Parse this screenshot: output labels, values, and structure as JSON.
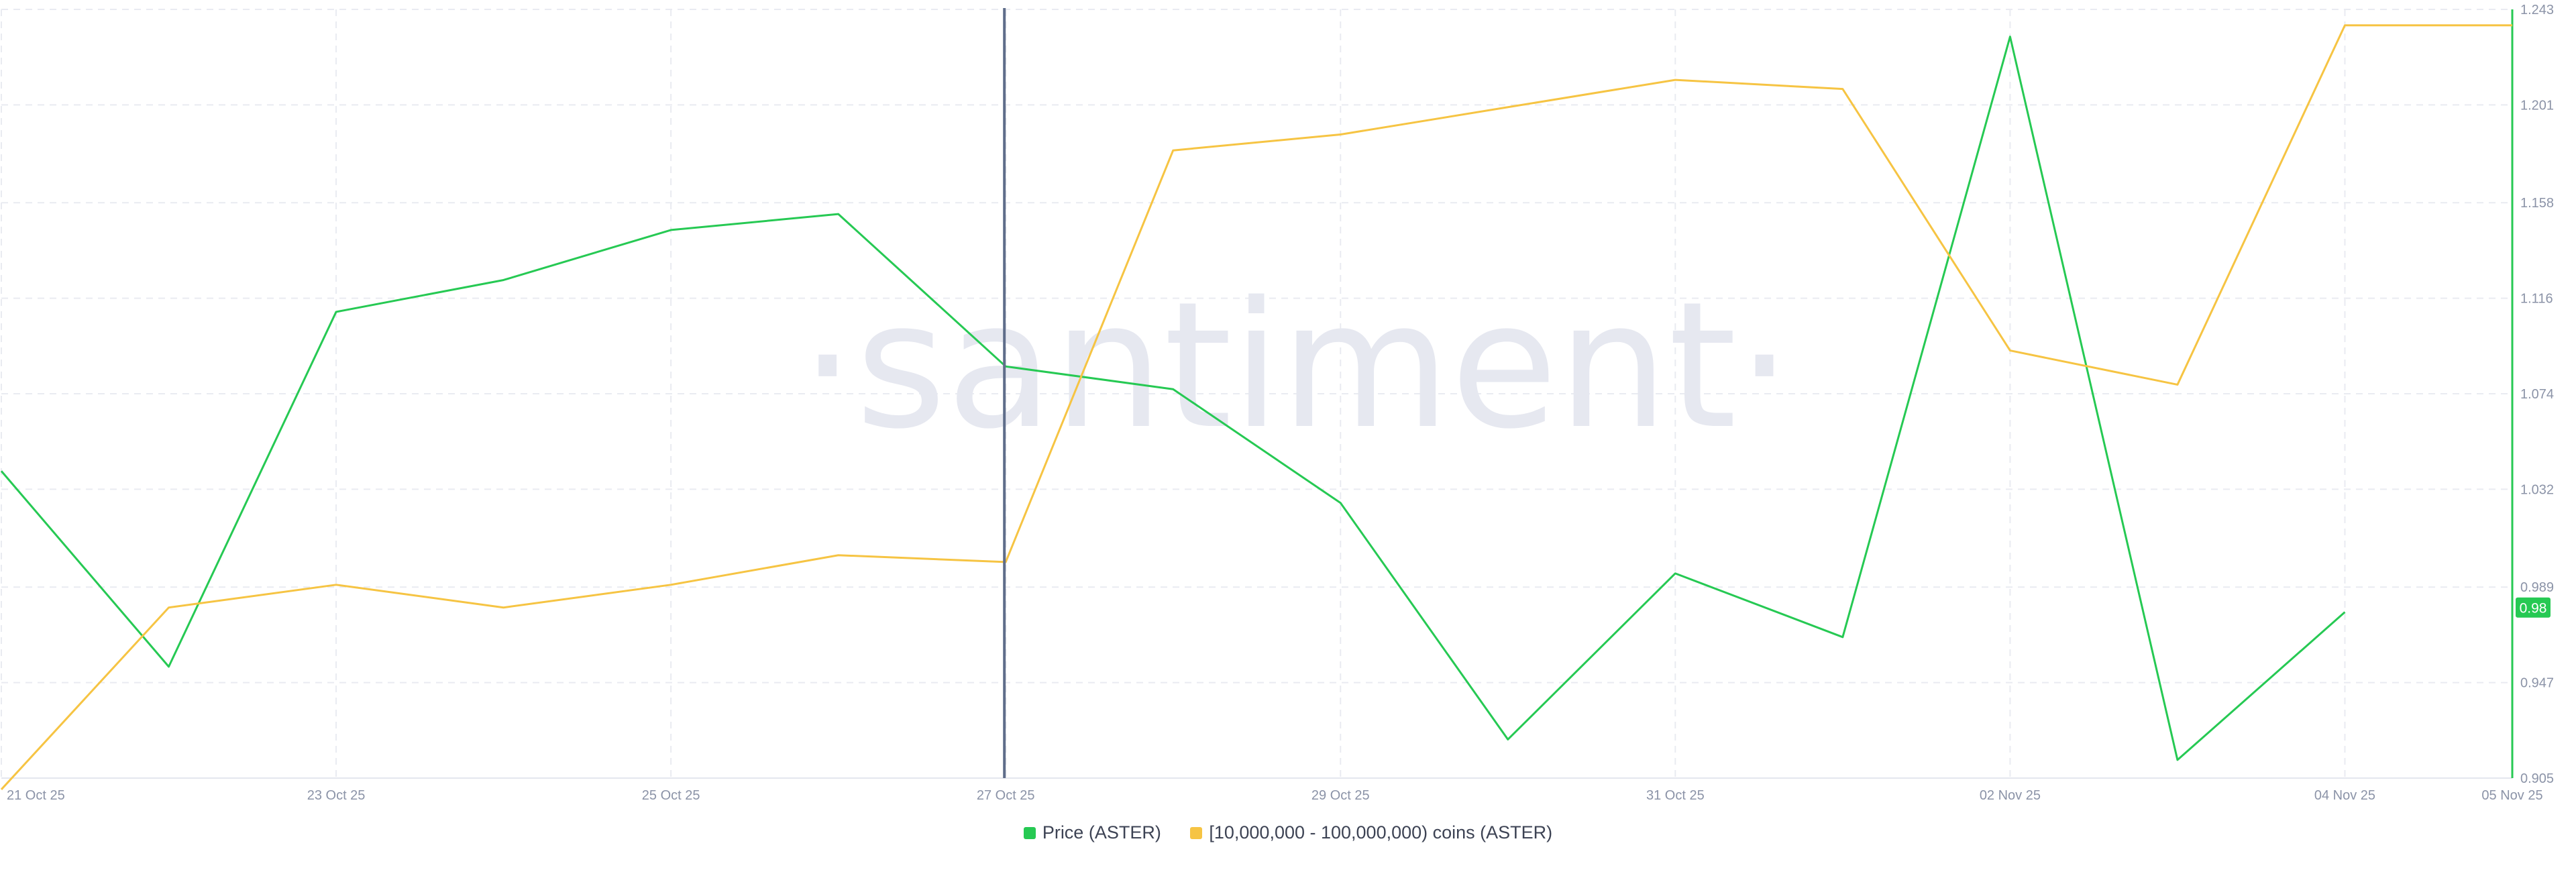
{
  "chart_data": {
    "type": "line",
    "watermark": "·santiment·",
    "x": [
      "21 Oct 25",
      "22 Oct 25",
      "23 Oct 25",
      "24 Oct 25",
      "25 Oct 25",
      "26 Oct 25",
      "27 Oct 25",
      "28 Oct 25",
      "29 Oct 25",
      "30 Oct 25",
      "31 Oct 25",
      "01 Nov 25",
      "02 Nov 25",
      "03 Nov 25",
      "04 Nov 25",
      "05 Nov 25"
    ],
    "x_tick_labels": [
      "21 Oct 25",
      "23 Oct 25",
      "25 Oct 25",
      "27 Oct 25",
      "29 Oct 25",
      "31 Oct 25",
      "02 Nov 25",
      "04 Nov 25",
      "05 Nov 25"
    ],
    "y_right": {
      "ticks": [
        "1.243",
        "1.201",
        "1.158",
        "1.116",
        "1.074",
        "1.032",
        "0.989",
        "0.947",
        "0.905"
      ],
      "ylim": [
        0.905,
        1.243
      ],
      "color": "#26c953"
    },
    "current_value_badge": "0.98",
    "marker_date": "27 Oct 25",
    "series": [
      {
        "name": "Price (ASTER)",
        "color": "#26c953",
        "axis": "right",
        "values": [
          1.04,
          0.954,
          1.11,
          1.124,
          1.146,
          1.153,
          1.086,
          1.076,
          1.026,
          0.922,
          0.995,
          0.967,
          1.231,
          0.913,
          0.978,
          null
        ]
      },
      {
        "name": "[10,000,000 - 100,000,000) coins (ASTER)",
        "color": "#f6c443",
        "axis": "hidden",
        "values": [
          0.9,
          0.98,
          0.99,
          0.98,
          0.99,
          1.003,
          1.0,
          1.181,
          1.188,
          1.2,
          1.212,
          1.208,
          1.093,
          1.078,
          1.236,
          1.236
        ],
        "note_scale": "relative (hidden axis)"
      }
    ],
    "legend_position": "bottom-center",
    "grid": true
  }
}
